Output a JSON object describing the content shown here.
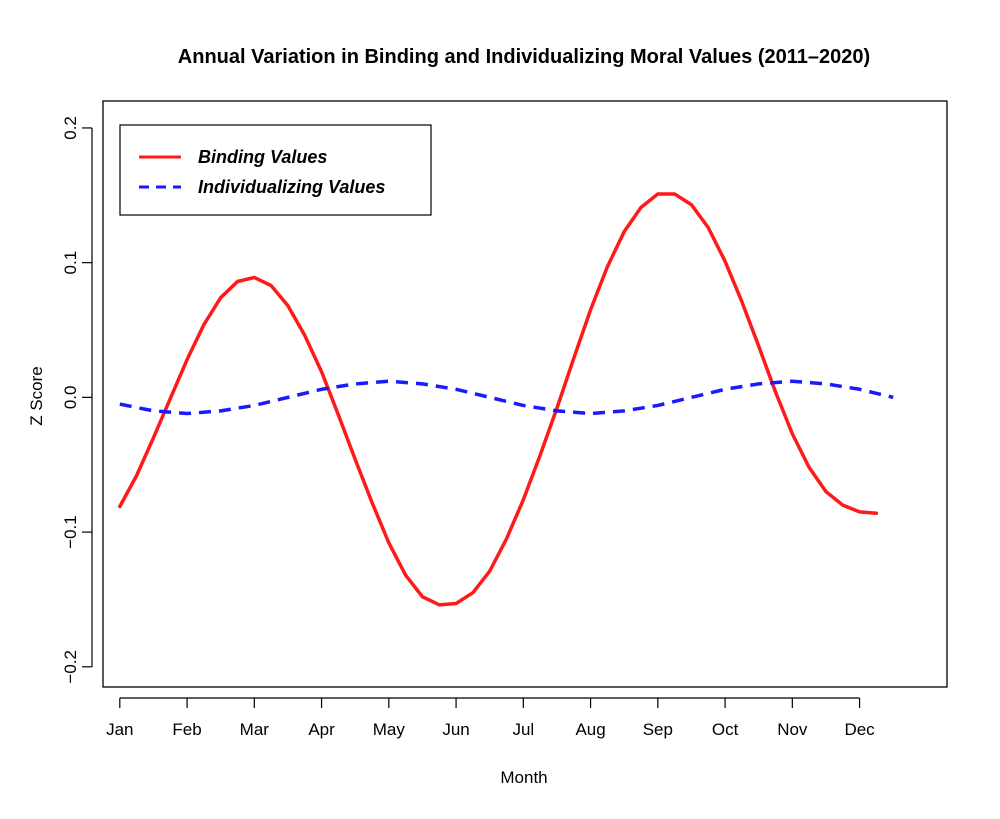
{
  "chart_data": {
    "type": "line",
    "title": "Annual Variation in Binding and Individualizing Moral Values (2011–2020)",
    "xlabel": "Month",
    "ylabel": "Z Score",
    "categories": [
      "Jan",
      "Feb",
      "Mar",
      "Apr",
      "May",
      "Jun",
      "Jul",
      "Aug",
      "Sep",
      "Oct",
      "Nov",
      "Dec"
    ],
    "x_range": [
      0.75,
      13.3
    ],
    "ylim": [
      -0.215,
      0.22
    ],
    "y_ticks": [
      -0.2,
      -0.1,
      0.0,
      0.1,
      0.2
    ],
    "y_tick_labels": [
      "−0.2",
      "−0.1",
      "0.0",
      "0.1",
      "0.2"
    ],
    "grid": false,
    "legend_position": "top-left",
    "series": [
      {
        "name": "Binding Values",
        "color": "#ff1a1a",
        "dash": "solid",
        "x": [
          1.0,
          1.25,
          1.5,
          1.75,
          2.0,
          2.25,
          2.5,
          2.75,
          3.0,
          3.25,
          3.5,
          3.75,
          4.0,
          4.25,
          4.5,
          4.75,
          5.0,
          5.25,
          5.5,
          5.75,
          6.0,
          6.25,
          6.5,
          6.75,
          7.0,
          7.25,
          7.5,
          7.75,
          8.0,
          8.25,
          8.5,
          8.75,
          9.0,
          9.25,
          9.5,
          9.75,
          10.0,
          10.25,
          10.5,
          10.75,
          11.0,
          11.25,
          11.5,
          11.75,
          12.0,
          12.25,
          12.5,
          12.75,
          13.0,
          13.25
        ],
        "y": [
          -0.081,
          -0.058,
          -0.03,
          -0.001,
          0.028,
          0.054,
          0.074,
          0.086,
          0.089,
          0.083,
          0.068,
          0.046,
          0.019,
          -0.013,
          -0.046,
          -0.078,
          -0.108,
          -0.132,
          -0.148,
          -0.154,
          -0.153,
          -0.145,
          -0.129,
          -0.105,
          -0.076,
          -0.043,
          -0.008,
          0.029,
          0.065,
          0.097,
          0.123,
          0.141,
          0.151,
          0.151,
          0.143,
          0.126,
          0.101,
          0.071,
          0.038,
          0.004,
          -0.027,
          -0.052,
          -0.07,
          -0.08,
          -0.085,
          -0.086,
          null,
          null,
          null,
          null
        ]
      },
      {
        "name": "Individualizing Values",
        "color": "#1a1aff",
        "dash": "dashed",
        "x": [
          1.0,
          1.5,
          2.0,
          2.5,
          3.0,
          3.5,
          4.0,
          4.5,
          5.0,
          5.5,
          6.0,
          6.5,
          7.0,
          7.5,
          8.0,
          8.5,
          9.0,
          9.5,
          10.0,
          10.5,
          11.0,
          11.5,
          12.0,
          12.5
        ],
        "y": [
          -0.005,
          -0.01,
          -0.012,
          -0.01,
          -0.006,
          0.0,
          0.006,
          0.01,
          0.012,
          0.01,
          0.006,
          0.0,
          -0.006,
          -0.01,
          -0.012,
          -0.01,
          -0.006,
          0.0,
          0.006,
          0.01,
          0.012,
          0.01,
          0.006,
          0.0
        ]
      }
    ]
  }
}
